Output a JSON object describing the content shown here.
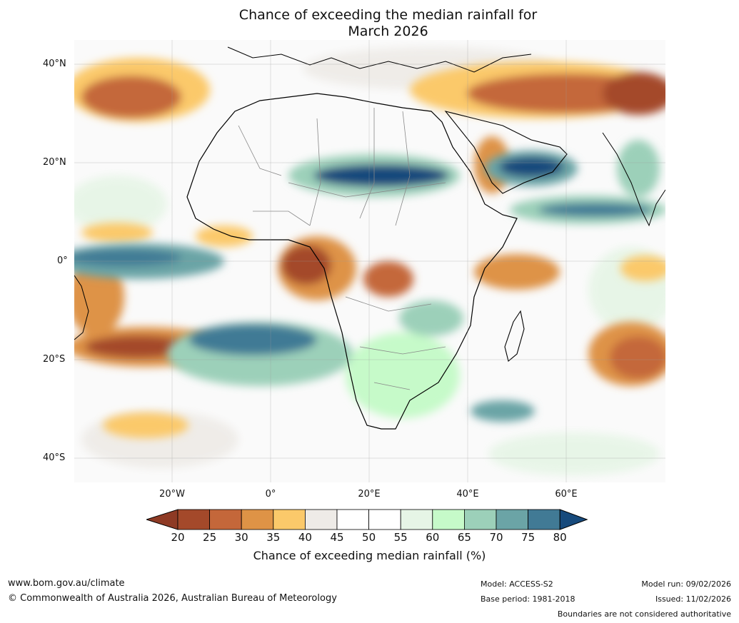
{
  "title_line1": "Chance of exceeding the median rainfall for",
  "title_line2": "March 2026",
  "map": {
    "lat_labels": [
      "40°N",
      "20°N",
      "0°",
      "20°S",
      "40°S"
    ],
    "lon_labels": [
      "20°W",
      "0°",
      "20°E",
      "40°E",
      "60°E"
    ],
    "extent": {
      "lon": [
        -40,
        80
      ],
      "lat": [
        -45,
        45
      ]
    }
  },
  "colorbar": {
    "ticks": [
      "20",
      "25",
      "30",
      "35",
      "40",
      "45",
      "50",
      "55",
      "60",
      "65",
      "70",
      "75",
      "80"
    ],
    "colors": [
      "#a4492a",
      "#c4673a",
      "#de9346",
      "#fbc96a",
      "#eeebe7",
      "#ffffff",
      "#ffffff",
      "#e6f5e6",
      "#c6fac9",
      "#9cd0b9",
      "#6ba4a6",
      "#417a95"
    ],
    "under_color": "#8e3a24",
    "over_color": "#174a7c",
    "label": "Chance of exceeding median rainfall (%)"
  },
  "footer": {
    "website": "www.bom.gov.au/climate",
    "copyright": "© Commonwealth of Australia 2026, Australian Bureau of Meteorology",
    "model": "Model: ACCESS-S2",
    "base_period": "Base period: 1981-2018",
    "model_run": "Model run: 09/02/2026",
    "issued": "Issued: 11/02/2026",
    "disclaimer": "Boundaries are not considered authoritative"
  }
}
